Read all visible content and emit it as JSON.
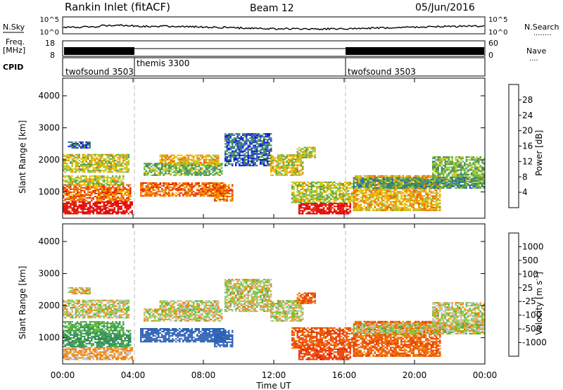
{
  "header": {
    "title": "Rankin Inlet (fitACF)",
    "beam": "Beam 12",
    "date": "05/Jun/2016"
  },
  "panels": {
    "nsky": {
      "left_label": "N.Sky",
      "right_label": "N.Search",
      "left_ticks": [
        "10^5",
        "10^0"
      ],
      "right_ticks": [
        "10^5",
        "10^0"
      ],
      "right_marker": "........"
    },
    "freq": {
      "left_label_1": "Freq.",
      "left_label_2": "[MHz]",
      "right_label": "Nave",
      "left_ticks": [
        "18",
        "8"
      ],
      "right_ticks": [
        "60",
        "0"
      ],
      "right_marker": "...."
    },
    "cpid": {
      "label": "CPID",
      "segments": [
        {
          "name": "twofsound 3503",
          "start_h": 0,
          "end_h": 4
        },
        {
          "name": "themis 3300",
          "start_h": 4,
          "end_h": 16
        },
        {
          "name": "twofsound 3503",
          "start_h": 16,
          "end_h": 24
        }
      ]
    }
  },
  "axes": {
    "ylabel": "Slant Range [km]",
    "xlabel": "Time UT",
    "y_ticks": [
      "1000",
      "2000",
      "3000",
      "4000"
    ],
    "x_ticks": [
      "00:00",
      "04:00",
      "08:00",
      "12:00",
      "16:00",
      "20:00",
      "00:00"
    ]
  },
  "colorbars": {
    "power": {
      "label": "Power [dB]",
      "ticks": [
        "4",
        "8",
        "12",
        "16",
        "20",
        "24",
        "28"
      ],
      "colors": [
        "#1010e0",
        "#2f62b5",
        "#3a8a5f",
        "#5aa046",
        "#9acc3a",
        "#f0c000",
        "#f09000",
        "#f06000",
        "#e82000",
        "#e00000"
      ]
    },
    "velocity": {
      "label": "Velocity [m s",
      "label_sup": "-1",
      "label_close": "]",
      "ticks": [
        "1000",
        "500",
        "100",
        "25",
        "-25",
        "-100",
        "-500",
        "-1000"
      ],
      "colors": [
        "#1a3ea8",
        "#2f62b5",
        "#2f8a5a",
        "#4aae3c",
        "#7acc3a",
        "#c0c0c0",
        "#c8c8c8",
        "#f0a020",
        "#f07a00",
        "#e84000",
        "#e00000"
      ]
    }
  },
  "chart_data": {
    "type": "heatmap",
    "x_range_hours": [
      0,
      24
    ],
    "y_range_km": [
      180,
      4550
    ],
    "grid": false,
    "mode_change_hours": [
      4,
      16
    ],
    "power_dB_range": [
      0,
      30
    ],
    "velocity_range": [
      -1000,
      1000
    ],
    "regions": [
      {
        "t0": 0.0,
        "t1": 4.0,
        "r0": 300,
        "r1": 700,
        "power": 29,
        "vel": -100
      },
      {
        "t0": 0.0,
        "t1": 3.9,
        "r0": 700,
        "r1": 1200,
        "power": 22,
        "vel": 300
      },
      {
        "t0": 0.0,
        "t1": 3.5,
        "r0": 1200,
        "r1": 1500,
        "power": 14,
        "vel": 200
      },
      {
        "t0": 0.0,
        "t1": 3.8,
        "r0": 1600,
        "r1": 2150,
        "power": 15,
        "vel": 0
      },
      {
        "t0": 0.3,
        "t1": 1.6,
        "r0": 2350,
        "r1": 2550,
        "power": 6,
        "vel": -50
      },
      {
        "t0": 4.4,
        "t1": 9.2,
        "r0": 850,
        "r1": 1300,
        "power": 22,
        "vel": 700
      },
      {
        "t0": 4.6,
        "t1": 9.0,
        "r0": 1500,
        "r1": 1900,
        "power": 11,
        "vel": 0
      },
      {
        "t0": 5.5,
        "t1": 8.8,
        "r0": 1850,
        "r1": 2150,
        "power": 18,
        "vel": 0
      },
      {
        "t0": 8.6,
        "t1": 9.6,
        "r0": 700,
        "r1": 1200,
        "power": 22,
        "vel": 800
      },
      {
        "t0": 9.2,
        "t1": 11.8,
        "r0": 1800,
        "r1": 2800,
        "power": 5,
        "vel": 0
      },
      {
        "t0": 11.8,
        "t1": 13.6,
        "r0": 1500,
        "r1": 2150,
        "power": 15,
        "vel": 0
      },
      {
        "t0": 13.4,
        "t1": 16.3,
        "r0": 300,
        "r1": 650,
        "power": 29,
        "vel": -400
      },
      {
        "t0": 13.0,
        "t1": 16.5,
        "r0": 650,
        "r1": 1300,
        "power": 14,
        "vel": -300
      },
      {
        "t0": 13.3,
        "t1": 14.3,
        "r0": 2050,
        "r1": 2400,
        "power": 14,
        "vel": -300
      },
      {
        "t0": 16.5,
        "t1": 21.5,
        "r0": 400,
        "r1": 1500,
        "power": 18,
        "vel": -250
      },
      {
        "t0": 21.0,
        "t1": 24.0,
        "r0": 1300,
        "r1": 2100,
        "power": 11,
        "vel": 0
      },
      {
        "t0": 16.5,
        "t1": 24.0,
        "r0": 1100,
        "r1": 1450,
        "power": 9,
        "vel": 0
      }
    ]
  }
}
